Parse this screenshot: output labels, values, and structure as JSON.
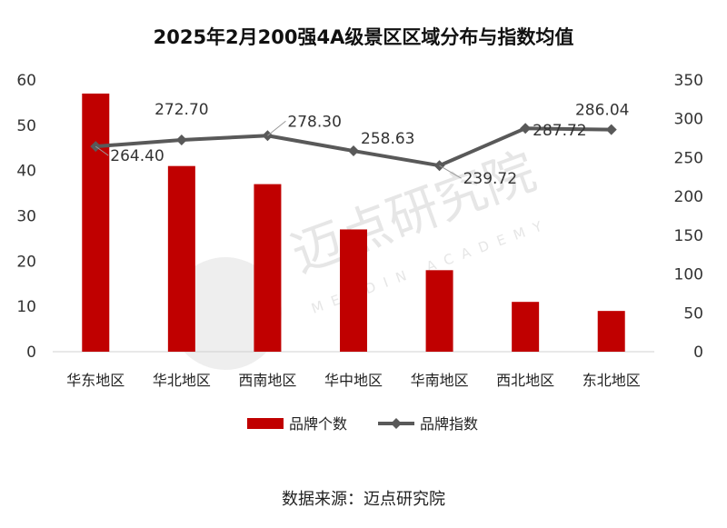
{
  "chart_data": {
    "type": "bar+line",
    "title": "2025年2月200强4A级景区区域分布与指数均值",
    "categories": [
      "华东地区",
      "华北地区",
      "西南地区",
      "华中地区",
      "华南地区",
      "西北地区",
      "东北地区"
    ],
    "series": [
      {
        "name": "品牌个数",
        "type": "bar",
        "axis": "left",
        "color": "#c00000",
        "values": [
          57,
          41,
          37,
          27,
          18,
          11,
          9
        ]
      },
      {
        "name": "品牌指数",
        "type": "line",
        "axis": "right",
        "color": "#595959",
        "values": [
          264.4,
          272.7,
          278.3,
          258.63,
          239.72,
          287.72,
          286.04
        ],
        "labels": [
          "264.40",
          "272.70",
          "278.30",
          "258.63",
          "239.72",
          "287.72",
          "286.04"
        ]
      }
    ],
    "y_left": {
      "min": 0,
      "max": 60,
      "ticks": [
        "0",
        "10",
        "20",
        "30",
        "40",
        "50",
        "60"
      ]
    },
    "y_right": {
      "min": 0,
      "max": 350,
      "ticks": [
        "0",
        "50",
        "100",
        "150",
        "200",
        "250",
        "300",
        "350"
      ]
    },
    "grid": false,
    "legend_position": "bottom"
  },
  "source": "数据来源：迈点研究院",
  "watermark": {
    "text": "迈点研究院",
    "sub": "MEADIN ACADEMY"
  }
}
